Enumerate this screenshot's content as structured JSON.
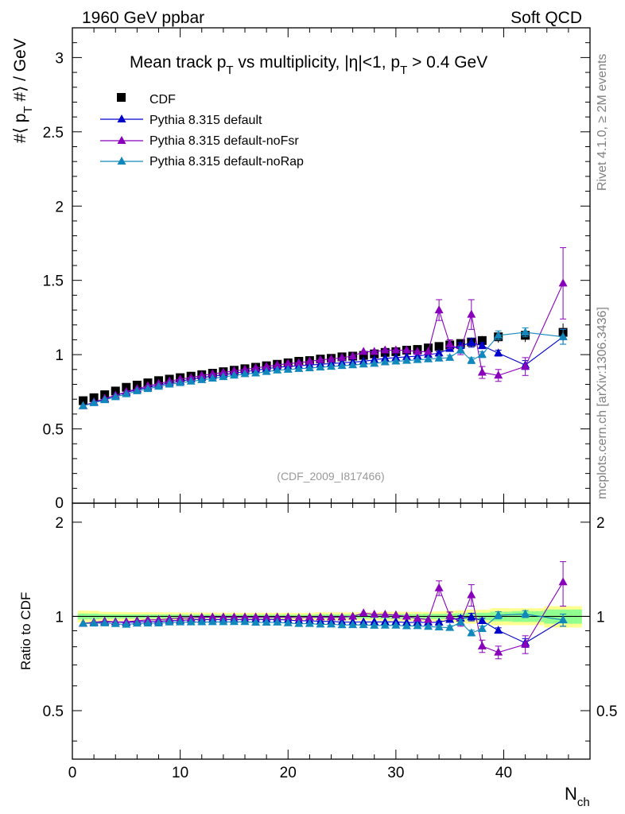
{
  "header": {
    "left": "1960 GeV ppbar",
    "right": "Soft QCD"
  },
  "side_labels": {
    "rivet": "Rivet 4.1.0, ≥ 2M events",
    "mcplots": "mcplots.cern.ch [arXiv:1306.3436]"
  },
  "watermark": "(CDF_2009_I817466)",
  "chart_data": {
    "type": "scatter",
    "title": {
      "pre": "Mean track p",
      "sub1": "T",
      "mid": " vs multiplicity, |η|<1, p",
      "sub2": "T",
      "post": " > 0.4 GeV"
    },
    "ylabel": {
      "a": "#⟨ p",
      "sub": "T",
      "b": " #⟩ / GeV"
    },
    "xlabel": {
      "a": "N",
      "sub": "ch"
    },
    "ratio_ylabel": "Ratio to CDF",
    "xlim": [
      0,
      48
    ],
    "ylim": [
      0,
      3.2
    ],
    "ratio_ylim": [
      0.35,
      2.3
    ],
    "xticks": [
      "0",
      "10",
      "20",
      "30",
      "40"
    ],
    "yticks": [
      "0.5",
      "1",
      "1.5",
      "2",
      "2.5",
      "3"
    ],
    "ytick_values": [
      0.5,
      1,
      1.5,
      2,
      2.5,
      3
    ],
    "ratio_yticks": [
      "0.5",
      "1",
      "2"
    ],
    "ratio_ytick_values": [
      0.5,
      1,
      2
    ],
    "yaxis_bottom_label": "0",
    "reference": {
      "name": "CDF",
      "color": "#000000",
      "x": [
        1,
        2,
        3,
        4,
        5,
        6,
        7,
        8,
        9,
        10,
        11,
        12,
        13,
        14,
        15,
        16,
        17,
        18,
        19,
        20,
        21,
        22,
        23,
        24,
        25,
        26,
        27,
        28,
        29,
        30,
        31,
        32,
        33,
        34,
        35,
        36,
        37,
        38,
        39.5,
        42,
        45.5
      ],
      "y": [
        0.69,
        0.71,
        0.73,
        0.755,
        0.78,
        0.795,
        0.81,
        0.825,
        0.835,
        0.845,
        0.855,
        0.865,
        0.875,
        0.885,
        0.895,
        0.905,
        0.915,
        0.925,
        0.935,
        0.945,
        0.955,
        0.96,
        0.97,
        0.975,
        0.985,
        0.99,
        0.995,
        1.005,
        1.015,
        1.02,
        1.03,
        1.035,
        1.045,
        1.055,
        1.065,
        1.075,
        1.085,
        1.095,
        1.12,
        1.13,
        1.15
      ],
      "band_halfwidth": [
        0.03,
        0.03,
        0.025,
        0.025,
        0.025,
        0.025,
        0.025,
        0.025,
        0.025,
        0.025,
        0.025,
        0.025,
        0.025,
        0.025,
        0.025,
        0.025,
        0.025,
        0.025,
        0.025,
        0.025,
        0.025,
        0.025,
        0.03,
        0.03,
        0.03,
        0.03,
        0.03,
        0.03,
        0.035,
        0.035,
        0.035,
        0.035,
        0.035,
        0.04,
        0.045,
        0.05,
        0.055,
        0.055,
        0.07,
        0.07,
        0.09
      ],
      "stat_halfwidth": [
        0.015,
        0.015,
        0.012,
        0.012,
        0.012,
        0.012,
        0.012,
        0.012,
        0.012,
        0.012,
        0.012,
        0.012,
        0.012,
        0.012,
        0.012,
        0.012,
        0.012,
        0.012,
        0.012,
        0.012,
        0.012,
        0.012,
        0.015,
        0.015,
        0.015,
        0.015,
        0.015,
        0.015,
        0.018,
        0.018,
        0.018,
        0.018,
        0.02,
        0.02,
        0.022,
        0.025,
        0.03,
        0.03,
        0.04,
        0.045,
        0.06
      ]
    },
    "series": [
      {
        "name": "Pythia 8.315 default",
        "color": "#0000cc",
        "x": [
          1,
          2,
          3,
          4,
          5,
          6,
          7,
          8,
          9,
          10,
          11,
          12,
          13,
          14,
          15,
          16,
          17,
          18,
          19,
          20,
          21,
          22,
          23,
          24,
          25,
          26,
          27,
          28,
          29,
          30,
          31,
          32,
          33,
          34,
          35,
          36,
          37,
          38,
          39.5,
          42,
          45.5
        ],
        "y": [
          0.655,
          0.68,
          0.7,
          0.725,
          0.745,
          0.765,
          0.78,
          0.795,
          0.81,
          0.82,
          0.835,
          0.845,
          0.855,
          0.865,
          0.875,
          0.885,
          0.895,
          0.905,
          0.915,
          0.92,
          0.925,
          0.93,
          0.935,
          0.94,
          0.945,
          0.95,
          0.955,
          0.965,
          0.975,
          0.98,
          0.985,
          0.99,
          1.0,
          1.01,
          1.04,
          1.06,
          1.08,
          1.06,
          1.01,
          0.93,
          1.12
        ],
        "err": [
          0,
          0,
          0,
          0,
          0,
          0,
          0,
          0,
          0,
          0,
          0,
          0,
          0,
          0,
          0,
          0,
          0,
          0,
          0,
          0,
          0,
          0,
          0,
          0,
          0,
          0,
          0,
          0,
          0,
          0,
          0,
          0,
          0,
          0.01,
          0.015,
          0.02,
          0.03,
          0.02,
          0.02,
          0.03,
          0.05
        ]
      },
      {
        "name": "Pythia 8.315 default-noFsr",
        "color": "#8800bb",
        "x": [
          1,
          2,
          3,
          4,
          5,
          6,
          7,
          8,
          9,
          10,
          11,
          12,
          13,
          14,
          15,
          16,
          17,
          18,
          19,
          20,
          21,
          22,
          23,
          24,
          25,
          26,
          27,
          28,
          29,
          30,
          31,
          32,
          33,
          34,
          35,
          36,
          37,
          38,
          39.5,
          42,
          45.5
        ],
        "y": [
          0.655,
          0.68,
          0.705,
          0.725,
          0.75,
          0.77,
          0.79,
          0.805,
          0.82,
          0.835,
          0.845,
          0.86,
          0.87,
          0.88,
          0.89,
          0.9,
          0.91,
          0.92,
          0.93,
          0.94,
          0.945,
          0.955,
          0.965,
          0.97,
          0.98,
          0.99,
          1.02,
          1.02,
          1.03,
          1.03,
          1.03,
          1.02,
          1.02,
          1.3,
          1.07,
          1.03,
          1.27,
          0.88,
          0.86,
          0.92,
          1.48
        ],
        "err": [
          0,
          0,
          0,
          0,
          0,
          0,
          0,
          0,
          0,
          0,
          0,
          0,
          0,
          0,
          0,
          0,
          0,
          0,
          0,
          0,
          0,
          0,
          0,
          0,
          0,
          0,
          0,
          0,
          0,
          0,
          0,
          0,
          0,
          0.07,
          0.03,
          0.03,
          0.1,
          0.04,
          0.04,
          0.06,
          0.24
        ]
      },
      {
        "name": "Pythia 8.315 default-noRap",
        "color": "#1188bb",
        "x": [
          1,
          2,
          3,
          4,
          5,
          6,
          7,
          8,
          9,
          10,
          11,
          12,
          13,
          14,
          15,
          16,
          17,
          18,
          19,
          20,
          21,
          22,
          23,
          24,
          25,
          26,
          27,
          28,
          29,
          30,
          31,
          32,
          33,
          34,
          35,
          36,
          37,
          38,
          39.5,
          42,
          45.5
        ],
        "y": [
          0.655,
          0.675,
          0.695,
          0.715,
          0.735,
          0.755,
          0.77,
          0.785,
          0.8,
          0.81,
          0.82,
          0.83,
          0.84,
          0.85,
          0.86,
          0.87,
          0.875,
          0.885,
          0.895,
          0.9,
          0.905,
          0.91,
          0.915,
          0.92,
          0.925,
          0.93,
          0.935,
          0.94,
          0.95,
          0.955,
          0.96,
          0.965,
          0.97,
          0.975,
          0.98,
          1.03,
          0.96,
          1.0,
          1.13,
          1.15,
          1.12
        ],
        "err": [
          0,
          0,
          0,
          0,
          0,
          0,
          0,
          0,
          0,
          0,
          0,
          0,
          0,
          0,
          0,
          0,
          0,
          0,
          0,
          0,
          0,
          0,
          0,
          0,
          0,
          0,
          0,
          0,
          0,
          0,
          0,
          0,
          0,
          0.01,
          0.015,
          0.02,
          0.02,
          0.02,
          0.03,
          0.03,
          0.05
        ]
      }
    ]
  }
}
